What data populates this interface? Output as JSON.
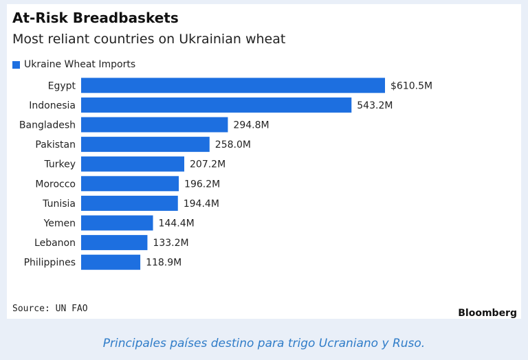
{
  "chart_data": {
    "type": "bar",
    "orientation": "horizontal",
    "title": "At-Risk Breadbaskets",
    "subtitle": "Most reliant countries on Ukrainian wheat",
    "legend": "Ukraine Wheat Imports",
    "categories": [
      "Egypt",
      "Indonesia",
      "Bangladesh",
      "Pakistan",
      "Turkey",
      "Morocco",
      "Tunisia",
      "Yemen",
      "Lebanon",
      "Philippines"
    ],
    "values": [
      610.5,
      543.2,
      294.8,
      258.0,
      207.2,
      196.2,
      194.4,
      144.4,
      133.2,
      118.9
    ],
    "value_labels": [
      "$610.5M",
      "543.2M",
      "294.8M",
      "258.0M",
      "207.2M",
      "196.2M",
      "194.4M",
      "144.4M",
      "133.2M",
      "118.9M"
    ],
    "unit": "M",
    "bar_color": "#1d6fe0",
    "xlim": [
      0,
      610.5
    ],
    "legend_position": "top-left"
  },
  "source": "Source: UN FAO",
  "brand": "Bloomberg",
  "caption": "Principales países destino para trigo Ucraniano y Ruso."
}
